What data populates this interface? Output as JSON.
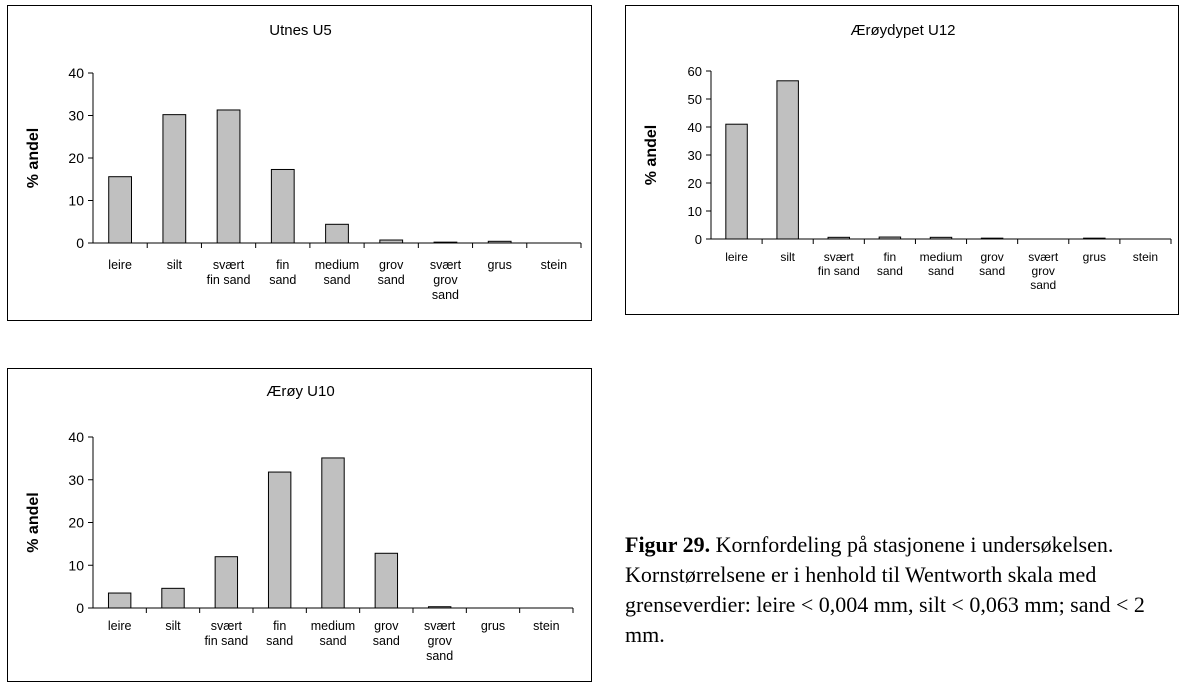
{
  "chart_data": [
    {
      "id": "u5",
      "type": "bar",
      "title": "Utnes U5",
      "ylabel": "% andel",
      "ylim": [
        0,
        40
      ],
      "yticks": [
        0,
        10,
        20,
        30,
        40
      ],
      "categories": [
        "leire",
        "silt",
        "svært fin sand",
        "fin sand",
        "medium sand",
        "grov sand",
        "svært grov sand",
        "grus",
        "stein"
      ],
      "category_lines": [
        [
          "leire"
        ],
        [
          "silt"
        ],
        [
          "svært",
          "fin sand"
        ],
        [
          "fin",
          "sand"
        ],
        [
          "medium",
          "sand"
        ],
        [
          "grov",
          "sand"
        ],
        [
          "svært",
          "grov",
          "sand"
        ],
        [
          "grus"
        ],
        [
          "stein"
        ]
      ],
      "values": [
        15.6,
        30.2,
        31.3,
        17.3,
        4.4,
        0.7,
        0.2,
        0.4,
        0
      ],
      "bar_color": "#c0c0c0"
    },
    {
      "id": "u12",
      "type": "bar",
      "title": "Ærøydypet U12",
      "ylabel": "% andel",
      "ylim": [
        0,
        60
      ],
      "yticks": [
        0,
        10,
        20,
        30,
        40,
        50,
        60
      ],
      "categories": [
        "leire",
        "silt",
        "svært fin sand",
        "fin sand",
        "medium sand",
        "grov sand",
        "svært grov sand",
        "grus",
        "stein"
      ],
      "category_lines": [
        [
          "leire"
        ],
        [
          "silt"
        ],
        [
          "svært",
          "fin sand"
        ],
        [
          "fin",
          "sand"
        ],
        [
          "medium",
          "sand"
        ],
        [
          "grov",
          "sand"
        ],
        [
          "svært",
          "grov",
          "sand"
        ],
        [
          "grus"
        ],
        [
          "stein"
        ]
      ],
      "values": [
        41,
        56.5,
        0.6,
        0.7,
        0.6,
        0.3,
        0,
        0.3,
        0
      ],
      "bar_color": "#c0c0c0"
    },
    {
      "id": "u10",
      "type": "bar",
      "title": "Ærøy U10",
      "ylabel": "% andel",
      "ylim": [
        0,
        40
      ],
      "yticks": [
        0,
        10,
        20,
        30,
        40
      ],
      "categories": [
        "leire",
        "silt",
        "svært fin sand",
        "fin sand",
        "medium sand",
        "grov sand",
        "svært grov sand",
        "grus",
        "stein"
      ],
      "category_lines": [
        [
          "leire"
        ],
        [
          "silt"
        ],
        [
          "svært",
          "fin sand"
        ],
        [
          "fin",
          "sand"
        ],
        [
          "medium",
          "sand"
        ],
        [
          "grov",
          "sand"
        ],
        [
          "svært",
          "grov",
          "sand"
        ],
        [
          "grus"
        ],
        [
          "stein"
        ]
      ],
      "values": [
        3.5,
        4.6,
        12,
        31.8,
        35.1,
        12.8,
        0.3,
        0,
        0
      ],
      "bar_color": "#c0c0c0"
    }
  ],
  "caption": {
    "label": "Figur 29.",
    "text": "Kornfordeling på stasjonene i undersøkelsen. Kornstørrelsene er i henhold til Wentworth skala med grenseverdier: leire < 0,004 mm, silt < 0,063 mm; sand < 2 mm."
  }
}
